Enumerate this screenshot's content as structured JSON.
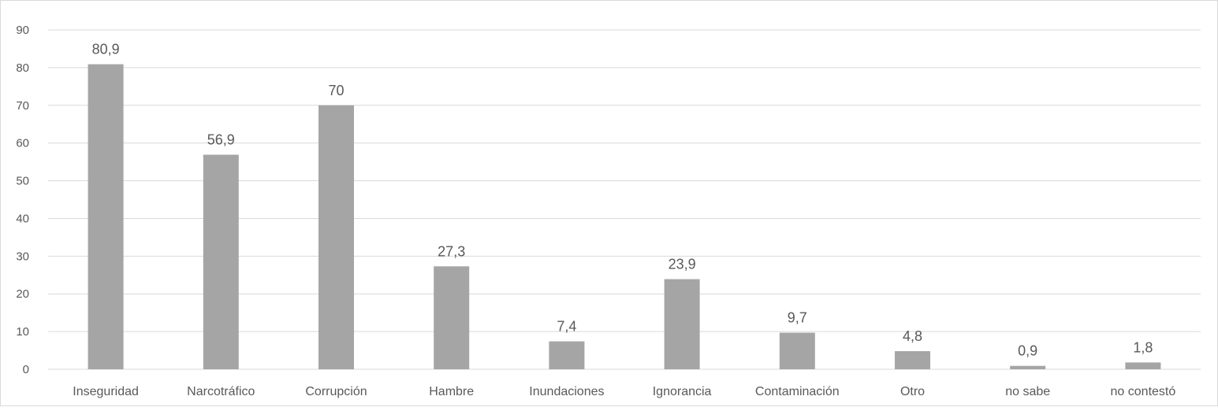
{
  "chart_data": {
    "type": "bar",
    "title": "",
    "xlabel": "",
    "ylabel": "",
    "categories": [
      "Inseguridad",
      "Narcotráfico",
      "Corrupción",
      "Hambre",
      "Inundaciones",
      "Ignorancia",
      "Contaminación",
      "Otro",
      "no sabe",
      "no contestó"
    ],
    "values": [
      80.9,
      56.9,
      70,
      27.3,
      7.4,
      23.9,
      9.7,
      4.8,
      0.9,
      1.8
    ],
    "data_labels": [
      "80,9",
      "56,9",
      "70",
      "27,3",
      "7,4",
      "23,9",
      "9,7",
      "4,8",
      "0,9",
      "1,8"
    ],
    "ylim": [
      0,
      90
    ],
    "yticks": [
      0,
      10,
      20,
      30,
      40,
      50,
      60,
      70,
      80,
      90
    ],
    "grid": true,
    "legend": "none",
    "colors": {
      "bar": "#a5a5a5",
      "grid": "#d9d9d9",
      "text": "#595959"
    }
  }
}
